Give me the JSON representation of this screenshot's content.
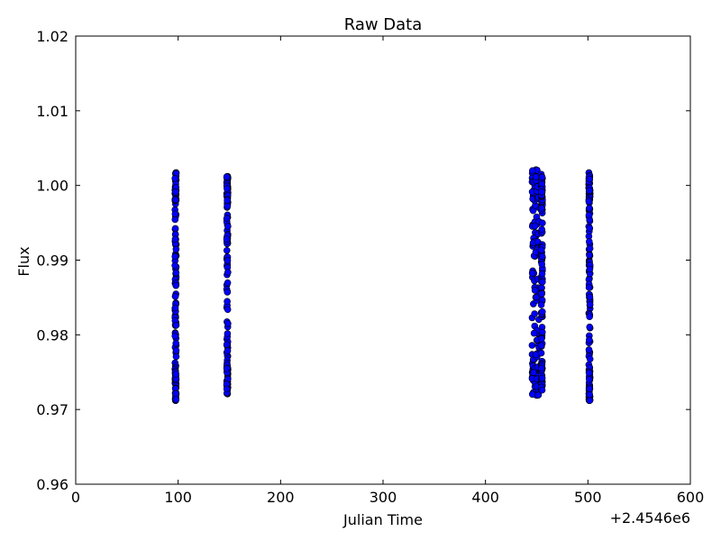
{
  "chart_data": {
    "type": "scatter",
    "title": "Raw Data",
    "xlabel": "Julian Time",
    "ylabel": "Flux",
    "x_offset_text": "+2.4546e6",
    "xlim": [
      0,
      600
    ],
    "ylim": [
      0.96,
      1.02
    ],
    "x_ticks": [
      0,
      100,
      200,
      300,
      400,
      500,
      600
    ],
    "y_ticks": [
      0.96,
      0.97,
      0.98,
      0.99,
      1.0,
      1.01,
      1.02
    ],
    "x_tick_labels": [
      "0",
      "100",
      "200",
      "300",
      "400",
      "500",
      "600"
    ],
    "y_tick_labels": [
      "0.96",
      "0.97",
      "0.98",
      "0.99",
      "1.00",
      "1.01",
      "1.02"
    ],
    "grid": false,
    "marker_color": "#0000ff",
    "marker_edge": "#000000",
    "clusters": [
      {
        "x": 97.5,
        "x_spread": 0.6,
        "y_min": 0.9712,
        "y_max": 1.0017,
        "dense_top": true
      },
      {
        "x": 148.0,
        "x_spread": 0.6,
        "y_min": 0.9721,
        "y_max": 1.0012,
        "dense_top": true
      },
      {
        "x": 449.0,
        "x_spread": 3.5,
        "y_min": 0.9719,
        "y_max": 1.0021,
        "dense_top": false
      },
      {
        "x": 455.0,
        "x_spread": 0.6,
        "y_min": 0.9726,
        "y_max": 1.0015,
        "dense_top": false
      },
      {
        "x": 501.5,
        "x_spread": 0.6,
        "y_min": 0.9712,
        "y_max": 1.0017,
        "dense_top": true
      }
    ]
  }
}
